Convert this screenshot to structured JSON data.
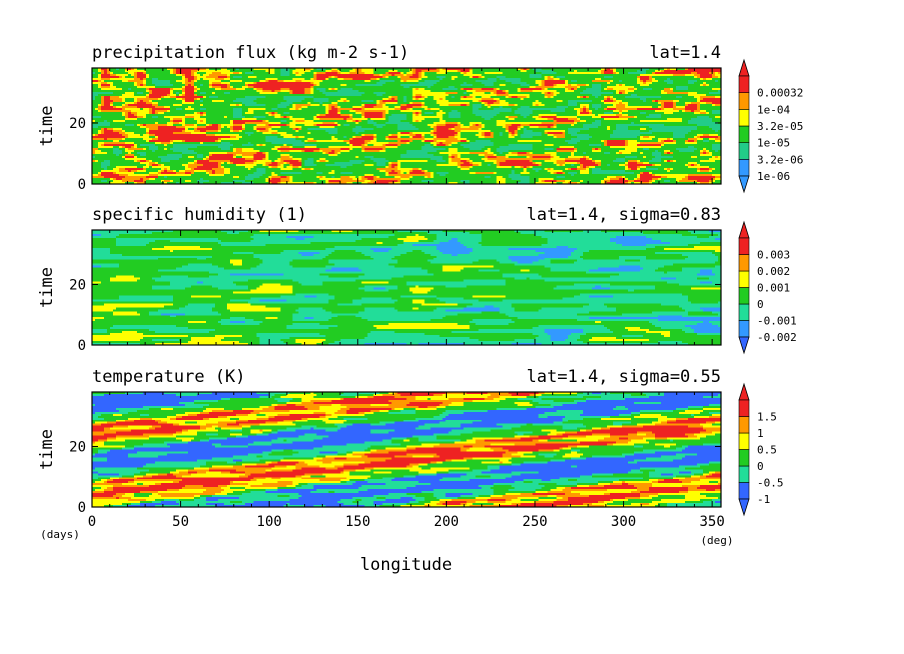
{
  "chart_data": [
    {
      "type": "heatmap",
      "title": "precipitation flux (kg m-2 s-1)",
      "subtitle": "lat=1.4",
      "ylabel": "time",
      "xlim": [
        0,
        355
      ],
      "ylim": [
        0,
        38
      ],
      "yticks": [
        "0",
        "20"
      ],
      "yvals": [
        0,
        20
      ],
      "colorbar": {
        "labels": [
          "1e-06",
          "3.2e-06",
          "1e-05",
          "3.2e-05",
          "1e-04",
          "0.00032"
        ],
        "colors": [
          "#3399ff",
          "#22cc88",
          "#22cc22",
          "#ffff00",
          "#ff9900",
          "#ee2222"
        ],
        "extend_below_color": "#3399ff",
        "extend_above_color": "#ee2222"
      }
    },
    {
      "type": "heatmap",
      "title": "specific humidity (1)",
      "subtitle": "lat=1.4, sigma=0.83",
      "ylabel": "time",
      "xlim": [
        0,
        355
      ],
      "ylim": [
        0,
        38
      ],
      "yticks": [
        "0",
        "20"
      ],
      "yvals": [
        0,
        20
      ],
      "colorbar": {
        "labels": [
          "-0.002",
          "-0.001",
          "0",
          "0.001",
          "0.002",
          "0.003"
        ],
        "colors": [
          "#3399ff",
          "#22dd99",
          "#22cc22",
          "#ffff00",
          "#ff9900",
          "#ee2222"
        ],
        "extend_below_color": "#3366ff",
        "extend_above_color": "#ee2222"
      }
    },
    {
      "type": "heatmap",
      "title": "temperature (K)",
      "subtitle": "lat=1.4, sigma=0.55",
      "ylabel": "time",
      "xlabel": "longitude",
      "xlim": [
        0,
        355
      ],
      "ylim": [
        0,
        38
      ],
      "yticks": [
        "0",
        "20"
      ],
      "yvals": [
        0,
        20
      ],
      "xticks": [
        "0",
        "50",
        "100",
        "150",
        "200",
        "250",
        "300",
        "350"
      ],
      "xvals": [
        0,
        50,
        100,
        150,
        200,
        250,
        300,
        350
      ],
      "x_unit": "(deg)",
      "y_unit": "(days)",
      "colorbar": {
        "labels": [
          "-1",
          "-0.5",
          "0",
          "0.5",
          "1",
          "1.5"
        ],
        "colors": [
          "#3366ff",
          "#22dd99",
          "#22cc22",
          "#ffff00",
          "#ff9900",
          "#ee2222"
        ],
        "extend_below_color": "#3366ff",
        "extend_above_color": "#ee2222"
      }
    }
  ]
}
